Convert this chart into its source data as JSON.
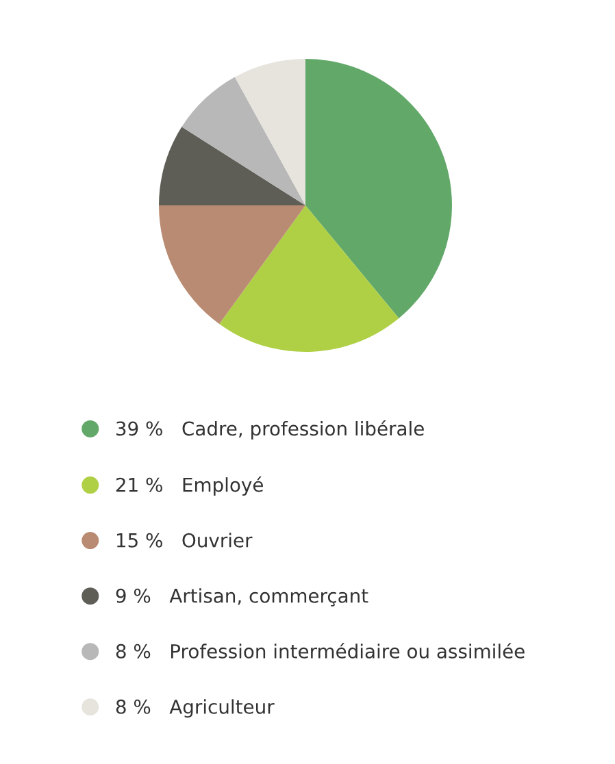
{
  "chart_data": {
    "type": "pie",
    "categories": [
      "Cadre, profession libérale",
      "Employé",
      "Ouvrier",
      "Artisan, commerçant",
      "Profession intermédiaire ou assimilée",
      "Agriculteur"
    ],
    "values": [
      39,
      21,
      15,
      9,
      8,
      8
    ],
    "value_labels": [
      "39 %",
      "21 %",
      "15 %",
      "9 %",
      "8 %",
      "8 %"
    ],
    "colors": [
      "#62a869",
      "#afd045",
      "#b98b72",
      "#5e5e57",
      "#b8b8b8",
      "#e6e4dc"
    ],
    "legend": "bottom"
  }
}
